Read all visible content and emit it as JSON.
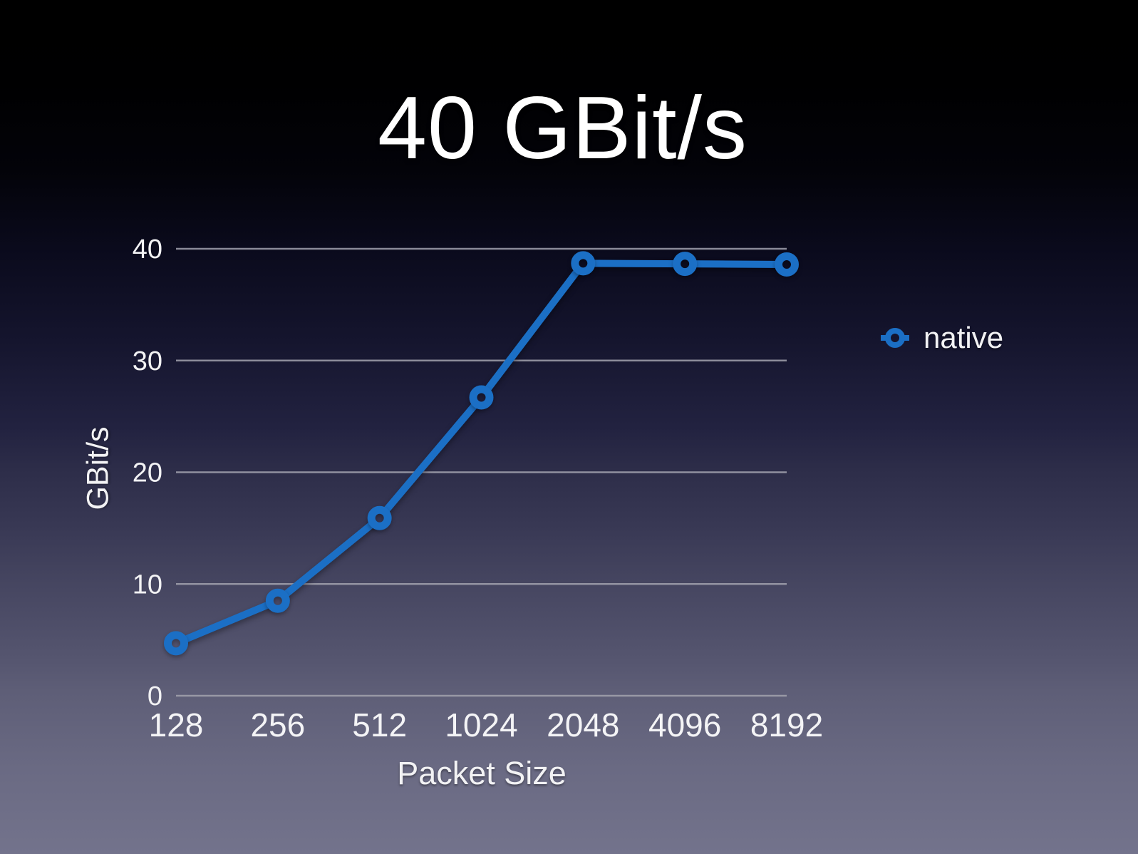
{
  "colors": {
    "series_blue": "#1b6fc5",
    "gridline": "#a2a2ae",
    "text": "#f2f2f4",
    "background_top": "#000000",
    "background_bottom": "#73738c"
  },
  "chart_data": {
    "type": "line",
    "title": "40 GBit/s",
    "xlabel": "Packet Size",
    "ylabel": "GBit/s",
    "categories": [
      "128",
      "256",
      "512",
      "1024",
      "2048",
      "4096",
      "8192"
    ],
    "series": [
      {
        "name": "native",
        "color": "#1b6fc5",
        "values": [
          4.7,
          8.5,
          15.9,
          26.7,
          38.7,
          38.65,
          38.6
        ]
      }
    ],
    "yticks": [
      0,
      10,
      20,
      30,
      40
    ],
    "ylim": [
      0,
      40
    ],
    "grid": true,
    "legend_position": "right",
    "marker_style": "open-circle"
  },
  "legend": {
    "items": [
      {
        "label": "native",
        "marker": "ring-marker-icon",
        "color": "#1b6fc5"
      }
    ]
  }
}
